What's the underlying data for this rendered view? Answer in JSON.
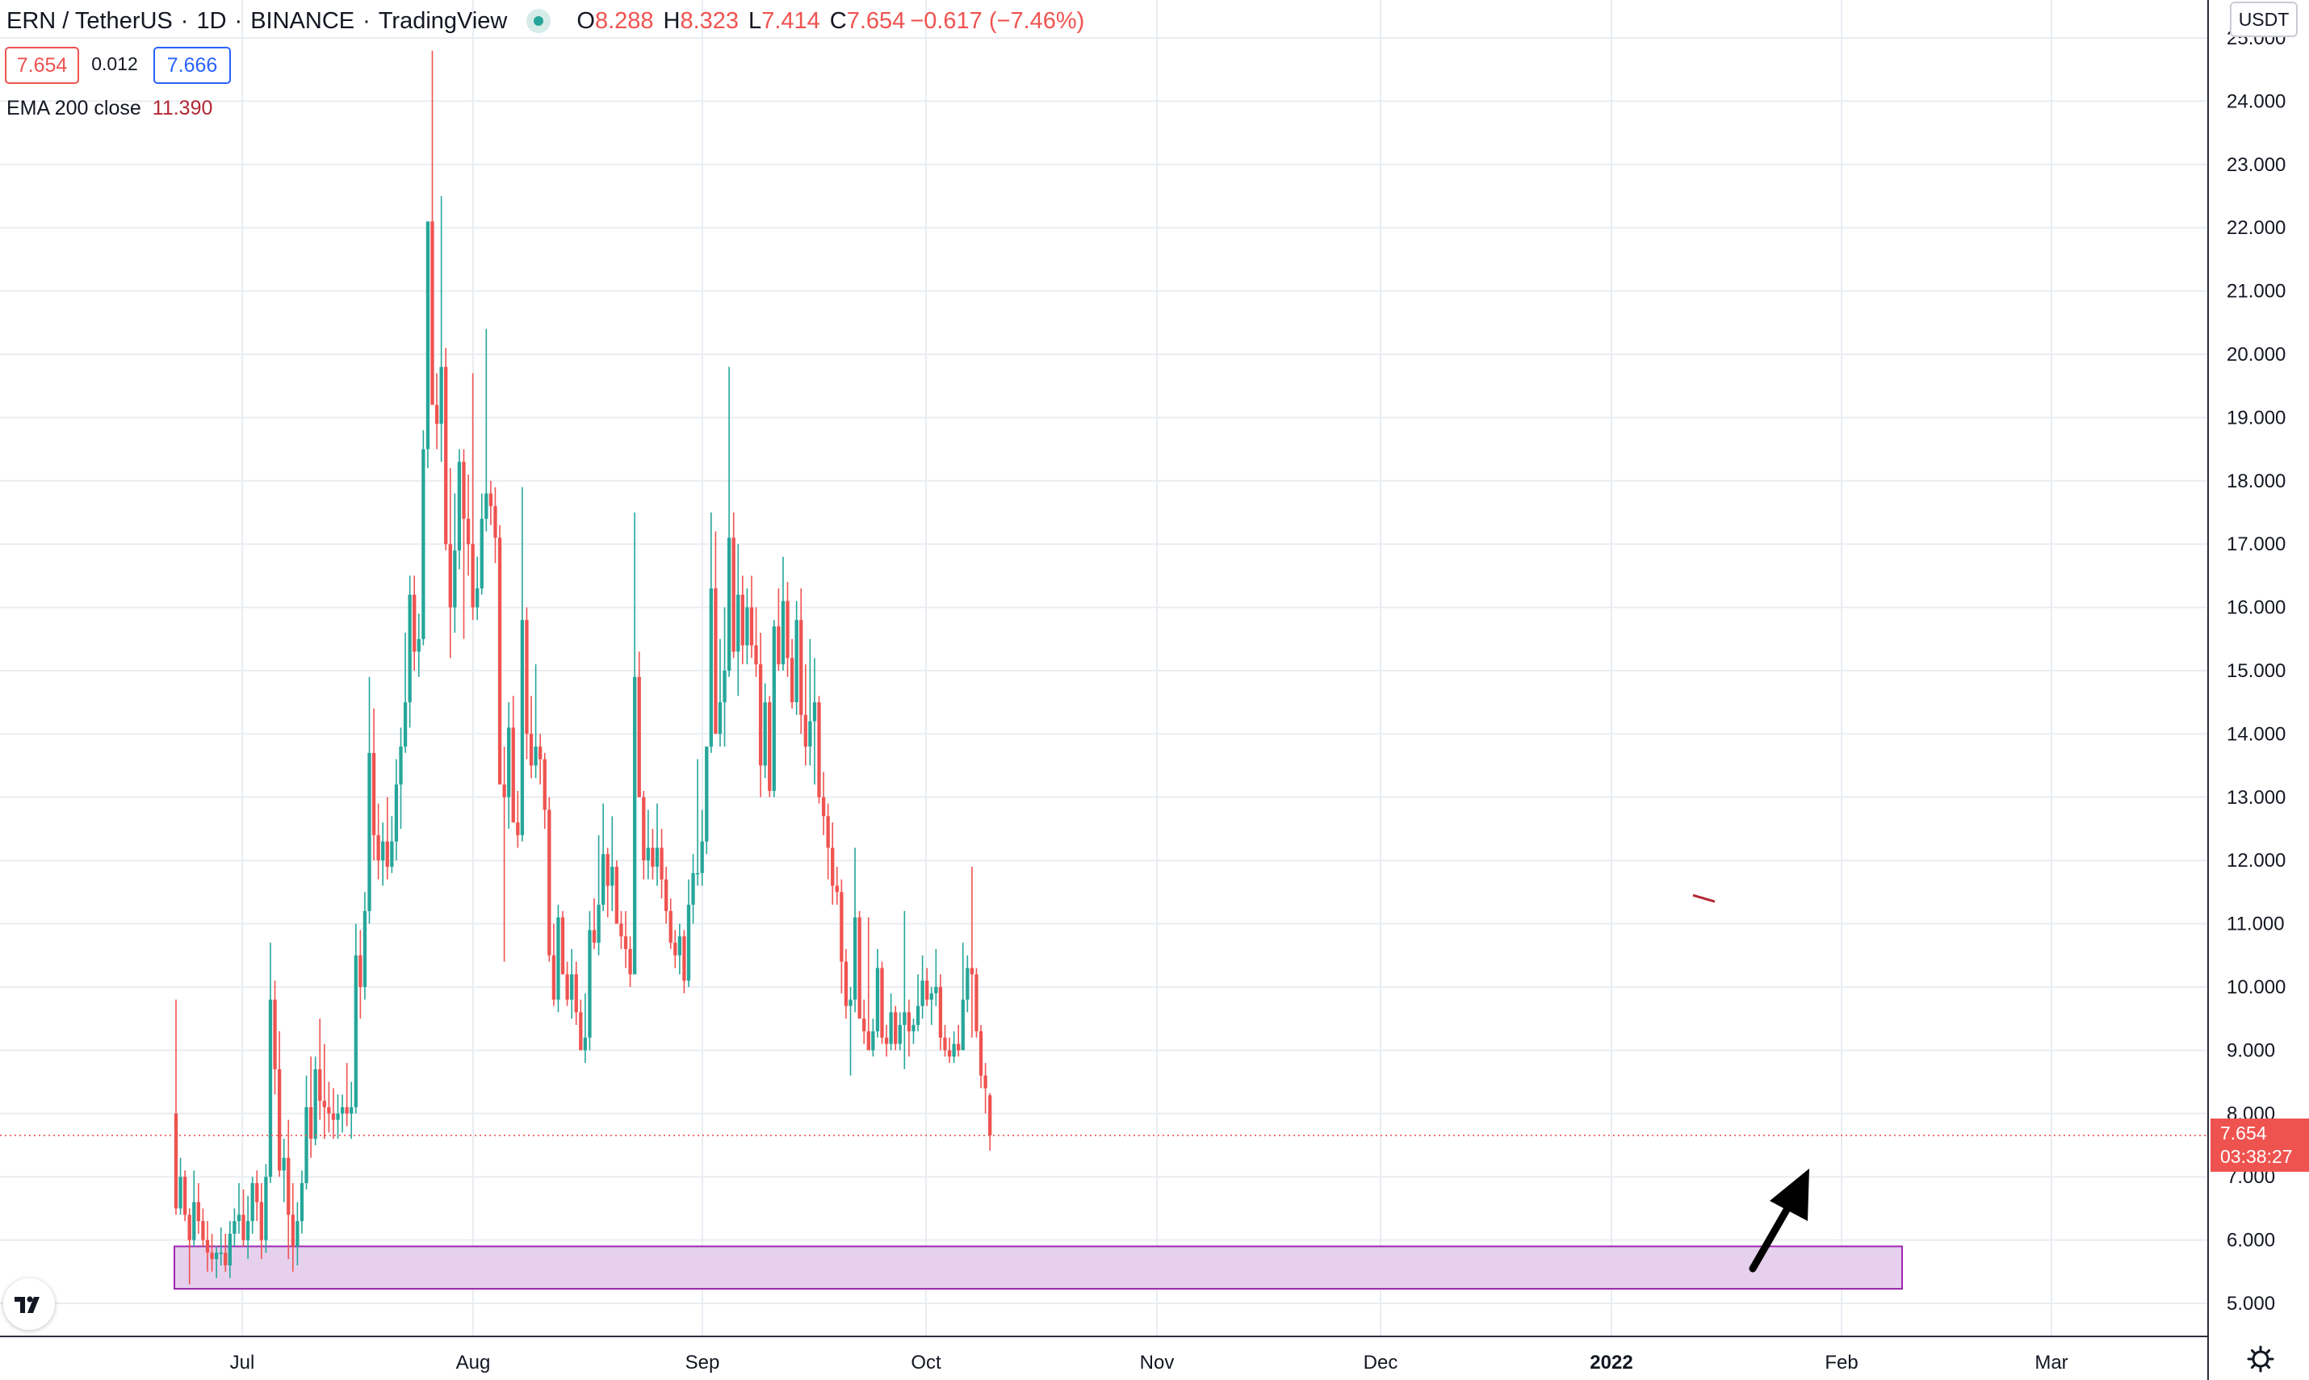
{
  "header": {
    "symbol": "ERN / TetherUS",
    "interval": "1D",
    "exchange": "BINANCE",
    "source": "TradingView",
    "o_label": "O",
    "o_value": "8.288",
    "h_label": "H",
    "h_value": "8.323",
    "l_label": "L",
    "l_value": "7.414",
    "c_label": "C",
    "c_value": "7.654",
    "change": "−0.617 (−7.46%)"
  },
  "trade": {
    "sell": "7.654",
    "spread": "0.012",
    "buy": "7.666"
  },
  "indicator": {
    "label": "EMA 200 close",
    "value": "11.390"
  },
  "axis": {
    "currency": "USDT",
    "last_price": "7.654",
    "countdown": "03:38:27",
    "y_ticks": [
      "5.000",
      "6.000",
      "7.000",
      "8.000",
      "9.000",
      "10.000",
      "11.000",
      "12.000",
      "13.000",
      "14.000",
      "15.000",
      "16.000",
      "17.000",
      "18.000",
      "19.000",
      "20.000",
      "21.000",
      "22.000",
      "23.000",
      "24.000",
      "25.000"
    ],
    "x_ticks": [
      "Jul",
      "Aug",
      "Sep",
      "Oct",
      "Nov",
      "Dec",
      "2022",
      "Feb",
      "Mar"
    ]
  },
  "colors": {
    "up": "#26a69a",
    "down": "#ef5350",
    "grid": "#e9edf2",
    "zone_fill": "#e6d0ee",
    "zone_stroke": "#9c27b0",
    "ema": "#b22833",
    "arrow": "#000000"
  },
  "chart_data": {
    "type": "candlestick",
    "symbol": "ERN / TetherUS",
    "interval": "1D",
    "x_axis_ticks": [
      "Jul",
      "Aug",
      "Sep",
      "Oct",
      "Nov",
      "Dec",
      "2022",
      "Feb",
      "Mar"
    ],
    "y_axis_ticks": [
      5,
      6,
      7,
      8,
      9,
      10,
      11,
      12,
      13,
      14,
      15,
      16,
      17,
      18,
      19,
      20,
      21,
      22,
      23,
      24,
      25
    ],
    "ylim": [
      4.45,
      25.2
    ],
    "last_price": 7.654,
    "candles_ohlc": [
      [
        8.0,
        9.8,
        6.4,
        6.5
      ],
      [
        6.5,
        7.3,
        6.4,
        7.0
      ],
      [
        7.0,
        7.1,
        6.3,
        6.4
      ],
      [
        6.4,
        6.5,
        5.3,
        6.0
      ],
      [
        6.0,
        7.1,
        5.9,
        6.6
      ],
      [
        6.6,
        6.9,
        6.1,
        6.3
      ],
      [
        6.3,
        6.5,
        5.9,
        6.0
      ],
      [
        6.0,
        6.3,
        5.5,
        5.8
      ],
      [
        5.8,
        6.1,
        5.5,
        5.7
      ],
      [
        5.7,
        5.9,
        5.4,
        5.8
      ],
      [
        5.8,
        6.2,
        5.6,
        5.8
      ],
      [
        5.8,
        6.1,
        5.5,
        5.6
      ],
      [
        5.6,
        6.3,
        5.4,
        6.1
      ],
      [
        6.1,
        6.5,
        5.9,
        6.3
      ],
      [
        6.3,
        6.9,
        6.1,
        6.4
      ],
      [
        6.4,
        6.8,
        5.9,
        6.0
      ],
      [
        6.0,
        6.7,
        5.7,
        6.3
      ],
      [
        6.3,
        7.0,
        6.1,
        6.9
      ],
      [
        6.9,
        7.1,
        6.3,
        6.6
      ],
      [
        6.6,
        6.9,
        5.7,
        6.0
      ],
      [
        6.0,
        7.2,
        5.8,
        7.0
      ],
      [
        7.0,
        10.7,
        6.9,
        9.8
      ],
      [
        9.8,
        10.1,
        8.3,
        8.7
      ],
      [
        8.7,
        9.3,
        7.0,
        7.1
      ],
      [
        7.1,
        7.6,
        6.6,
        7.3
      ],
      [
        7.3,
        7.9,
        5.7,
        6.4
      ],
      [
        6.4,
        6.9,
        5.5,
        5.9
      ],
      [
        5.9,
        6.6,
        5.6,
        6.3
      ],
      [
        6.3,
        7.1,
        6.1,
        6.9
      ],
      [
        6.9,
        8.6,
        6.8,
        8.1
      ],
      [
        8.1,
        8.9,
        7.3,
        7.6
      ],
      [
        7.6,
        8.9,
        7.5,
        8.7
      ],
      [
        8.7,
        9.5,
        7.9,
        8.2
      ],
      [
        8.2,
        9.1,
        7.6,
        8.1
      ],
      [
        8.1,
        8.5,
        7.7,
        8.0
      ],
      [
        8.0,
        8.4,
        7.6,
        7.9
      ],
      [
        7.9,
        8.3,
        7.6,
        8.0
      ],
      [
        8.0,
        8.3,
        7.7,
        8.1
      ],
      [
        8.1,
        8.8,
        7.8,
        8.0
      ],
      [
        8.0,
        8.5,
        7.6,
        8.1
      ],
      [
        8.1,
        11.0,
        8.0,
        10.5
      ],
      [
        10.5,
        10.9,
        9.5,
        10.0
      ],
      [
        10.0,
        11.5,
        9.8,
        11.2
      ],
      [
        11.2,
        14.9,
        11.0,
        13.7
      ],
      [
        13.7,
        14.4,
        12.0,
        12.4
      ],
      [
        12.4,
        12.9,
        11.7,
        12.0
      ],
      [
        12.0,
        12.6,
        11.6,
        12.3
      ],
      [
        12.3,
        13.0,
        11.7,
        11.9
      ],
      [
        11.9,
        12.7,
        11.8,
        12.3
      ],
      [
        12.3,
        13.6,
        12.0,
        13.2
      ],
      [
        13.2,
        14.1,
        12.5,
        13.8
      ],
      [
        13.8,
        15.6,
        13.7,
        14.5
      ],
      [
        14.5,
        16.5,
        14.1,
        16.2
      ],
      [
        16.2,
        16.5,
        15.0,
        15.3
      ],
      [
        15.3,
        15.9,
        14.9,
        15.5
      ],
      [
        15.5,
        18.8,
        15.4,
        18.5
      ],
      [
        18.5,
        21.4,
        18.2,
        22.1
      ],
      [
        22.1,
        24.8,
        21.8,
        19.2
      ],
      [
        19.2,
        19.7,
        18.5,
        18.9
      ],
      [
        18.9,
        22.5,
        18.3,
        19.8
      ],
      [
        19.8,
        20.1,
        16.9,
        17.0
      ],
      [
        17.0,
        18.2,
        15.2,
        16.0
      ],
      [
        16.0,
        17.8,
        15.6,
        16.9
      ],
      [
        16.9,
        18.5,
        16.6,
        18.3
      ],
      [
        18.3,
        18.5,
        15.5,
        17.4
      ],
      [
        17.4,
        18.1,
        16.5,
        17.0
      ],
      [
        17.0,
        19.7,
        15.8,
        16.0
      ],
      [
        16.0,
        16.8,
        15.8,
        16.3
      ],
      [
        16.3,
        17.8,
        16.2,
        17.4
      ],
      [
        17.4,
        20.4,
        17.2,
        17.8
      ],
      [
        17.8,
        18.0,
        17.3,
        17.6
      ],
      [
        17.6,
        17.9,
        16.7,
        17.1
      ],
      [
        17.1,
        17.3,
        13.5,
        13.2
      ],
      [
        13.2,
        13.8,
        10.4,
        13.0
      ],
      [
        13.0,
        14.5,
        12.5,
        14.1
      ],
      [
        14.1,
        14.6,
        12.6,
        12.6
      ],
      [
        12.6,
        13.1,
        12.2,
        12.4
      ],
      [
        12.4,
        17.9,
        12.3,
        15.8
      ],
      [
        15.8,
        16.0,
        13.6,
        14.0
      ],
      [
        14.0,
        14.6,
        13.3,
        13.5
      ],
      [
        13.5,
        15.1,
        13.3,
        13.8
      ],
      [
        13.8,
        14.0,
        13.2,
        13.6
      ],
      [
        13.6,
        13.7,
        12.5,
        12.8
      ],
      [
        12.8,
        13.0,
        10.4,
        10.5
      ],
      [
        10.5,
        11.0,
        9.7,
        9.8
      ],
      [
        9.8,
        11.3,
        9.6,
        11.1
      ],
      [
        11.1,
        11.2,
        10.2,
        10.2
      ],
      [
        10.2,
        10.4,
        9.7,
        9.8
      ],
      [
        9.8,
        10.6,
        9.5,
        10.2
      ],
      [
        10.2,
        10.4,
        9.4,
        9.6
      ],
      [
        9.6,
        9.8,
        9.1,
        9.0
      ],
      [
        9.0,
        9.9,
        8.8,
        9.2
      ],
      [
        9.2,
        11.2,
        9.0,
        10.9
      ],
      [
        10.9,
        11.4,
        10.6,
        10.7
      ],
      [
        10.7,
        12.4,
        10.5,
        11.3
      ],
      [
        11.3,
        12.9,
        11.2,
        12.1
      ],
      [
        12.1,
        12.2,
        11.1,
        11.6
      ],
      [
        11.6,
        12.7,
        11.2,
        11.9
      ],
      [
        11.9,
        12.0,
        11.1,
        11.0
      ],
      [
        11.0,
        11.2,
        10.6,
        10.8
      ],
      [
        10.8,
        11.2,
        10.3,
        10.6
      ],
      [
        10.6,
        10.8,
        10.0,
        10.2
      ],
      [
        10.2,
        17.5,
        10.2,
        14.9
      ],
      [
        14.9,
        15.3,
        13.0,
        13.0
      ],
      [
        13.0,
        13.1,
        11.7,
        12.0
      ],
      [
        12.0,
        12.8,
        11.7,
        12.2
      ],
      [
        12.2,
        12.5,
        11.7,
        11.9
      ],
      [
        11.9,
        12.9,
        11.6,
        12.2
      ],
      [
        12.2,
        12.5,
        11.4,
        11.7
      ],
      [
        11.7,
        11.9,
        11.0,
        11.2
      ],
      [
        11.2,
        11.4,
        10.6,
        10.7
      ],
      [
        10.7,
        10.9,
        10.3,
        10.5
      ],
      [
        10.5,
        11.0,
        10.2,
        10.8
      ],
      [
        10.8,
        10.9,
        9.9,
        10.1
      ],
      [
        10.1,
        11.7,
        10.0,
        11.3
      ],
      [
        11.3,
        12.1,
        11.0,
        11.8
      ],
      [
        11.8,
        13.6,
        11.6,
        11.8
      ],
      [
        11.8,
        12.8,
        11.6,
        12.3
      ],
      [
        12.3,
        13.3,
        12.1,
        13.8
      ],
      [
        13.8,
        17.5,
        13.7,
        16.3
      ],
      [
        16.3,
        17.2,
        14.2,
        14.0
      ],
      [
        14.0,
        15.5,
        13.8,
        14.5
      ],
      [
        14.5,
        16.0,
        13.8,
        15.0
      ],
      [
        15.0,
        19.8,
        14.9,
        17.1
      ],
      [
        17.1,
        17.5,
        15.2,
        15.3
      ],
      [
        15.3,
        17.0,
        14.6,
        16.2
      ],
      [
        16.2,
        16.5,
        15.1,
        15.4
      ],
      [
        15.4,
        16.3,
        15.1,
        16.0
      ],
      [
        16.0,
        16.5,
        15.2,
        15.4
      ],
      [
        15.4,
        16.0,
        14.9,
        15.1
      ],
      [
        15.1,
        15.6,
        13.0,
        13.5
      ],
      [
        13.5,
        14.8,
        13.3,
        14.5
      ],
      [
        14.5,
        14.6,
        13.0,
        13.1
      ],
      [
        13.1,
        15.8,
        13.0,
        15.7
      ],
      [
        15.7,
        16.3,
        15.0,
        15.1
      ],
      [
        15.1,
        16.8,
        15.0,
        16.1
      ],
      [
        16.1,
        16.4,
        14.9,
        15.2
      ],
      [
        15.2,
        15.5,
        14.4,
        14.5
      ],
      [
        14.5,
        16.1,
        14.3,
        15.8
      ],
      [
        15.8,
        16.3,
        14.0,
        14.3
      ],
      [
        14.3,
        15.1,
        13.5,
        13.8
      ],
      [
        13.8,
        15.5,
        13.5,
        14.2
      ],
      [
        14.2,
        15.2,
        13.2,
        14.5
      ],
      [
        14.5,
        14.6,
        12.9,
        13.0
      ],
      [
        13.0,
        13.4,
        12.4,
        12.7
      ],
      [
        12.7,
        12.9,
        11.7,
        12.2
      ],
      [
        12.2,
        12.6,
        11.3,
        11.6
      ],
      [
        11.6,
        11.9,
        11.3,
        11.5
      ],
      [
        11.5,
        11.7,
        9.9,
        10.4
      ],
      [
        10.4,
        10.6,
        9.5,
        9.7
      ],
      [
        9.7,
        10.0,
        8.6,
        9.8
      ],
      [
        9.8,
        12.2,
        9.6,
        11.1
      ],
      [
        11.1,
        11.2,
        9.6,
        9.5
      ],
      [
        9.5,
        9.8,
        9.1,
        9.3
      ],
      [
        9.3,
        11.1,
        9.2,
        9.0
      ],
      [
        9.0,
        9.5,
        8.9,
        9.3
      ],
      [
        9.3,
        10.6,
        9.2,
        10.3
      ],
      [
        10.3,
        10.4,
        9.1,
        9.2
      ],
      [
        9.2,
        9.4,
        8.9,
        9.1
      ],
      [
        9.1,
        9.9,
        9.0,
        9.6
      ],
      [
        9.6,
        9.7,
        9.0,
        9.1
      ],
      [
        9.1,
        9.6,
        9.0,
        9.4
      ],
      [
        9.4,
        11.2,
        8.7,
        9.6
      ],
      [
        9.6,
        9.8,
        8.9,
        9.3
      ],
      [
        9.3,
        9.5,
        9.1,
        9.4
      ],
      [
        9.4,
        10.2,
        9.3,
        9.7
      ],
      [
        9.7,
        10.5,
        9.5,
        10.1
      ],
      [
        10.1,
        10.3,
        9.7,
        9.8
      ],
      [
        9.8,
        10.0,
        9.4,
        9.9
      ],
      [
        9.9,
        10.6,
        9.7,
        10.0
      ],
      [
        10.0,
        10.2,
        9.0,
        9.2
      ],
      [
        9.2,
        9.4,
        8.9,
        9.0
      ],
      [
        9.0,
        9.2,
        8.8,
        8.9
      ],
      [
        8.9,
        9.3,
        8.8,
        9.1
      ],
      [
        9.1,
        9.4,
        8.9,
        9.0
      ],
      [
        9.0,
        10.7,
        9.3,
        9.8
      ],
      [
        9.8,
        10.5,
        9.6,
        10.3
      ],
      [
        10.3,
        11.9,
        9.2,
        10.2
      ],
      [
        10.2,
        10.3,
        9.2,
        9.3
      ],
      [
        9.3,
        9.4,
        8.4,
        8.6
      ],
      [
        8.6,
        8.8,
        8.0,
        8.4
      ],
      [
        8.288,
        8.323,
        7.414,
        7.654
      ]
    ],
    "ema_200_close": 11.39,
    "support_zone": {
      "y_range": [
        5.23,
        5.9
      ],
      "from": "late Jun",
      "to": "early Feb"
    },
    "annotation": "arrow pointing up toward the price"
  }
}
